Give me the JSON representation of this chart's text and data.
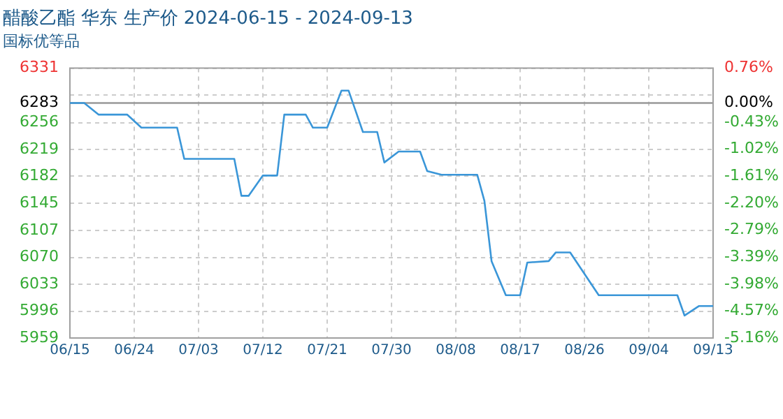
{
  "chart_data": {
    "type": "line",
    "title": "醋酸乙酯 华东 生产价 2024-06-15 - 2024-09-13",
    "subtitle": "国标优等品",
    "x": [
      "--06-15",
      "--06-17",
      "--06-19",
      "--06-23",
      "--06-25",
      "--06-30",
      "--07-01",
      "--07-08",
      "--07-09",
      "--07-10",
      "--07-12",
      "--07-14",
      "--07-15",
      "--07-18",
      "--07-19",
      "--07-21",
      "--07-23",
      "--07-24",
      "--07-26",
      "--07-28",
      "--07-29",
      "--07-31",
      "--08-03",
      "--08-04",
      "--08-06",
      "--08-11",
      "--08-12",
      "--08-13",
      "--08-15",
      "--08-17",
      "--08-18",
      "--08-21",
      "--08-22",
      "--08-24",
      "--08-28",
      "--09-08",
      "--09-09",
      "--09-11",
      "--09-13"
    ],
    "series": [
      {
        "color": "#3a96d8",
        "values": [
          6283,
          6283,
          6267,
          6267,
          6249,
          6249,
          6206,
          6206,
          6155,
          6155,
          6183,
          6183,
          6267,
          6267,
          6249,
          6249,
          6300,
          6300,
          6243,
          6243,
          6201,
          6216,
          6216,
          6189,
          6184,
          6184,
          6148,
          6065,
          6018,
          6018,
          6063,
          6065,
          6077,
          6077,
          6018,
          6018,
          5990,
          6003,
          6003
        ]
      }
    ],
    "xlim": [
      "--06-15",
      "--09-13"
    ],
    "xticks": [
      {
        "value": "--06-15",
        "label": "06/15"
      },
      {
        "value": "--06-24",
        "label": "06/24"
      },
      {
        "value": "--07-03",
        "label": "07/03"
      },
      {
        "value": "--07-12",
        "label": "07/12"
      },
      {
        "value": "--07-21",
        "label": "07/21"
      },
      {
        "value": "--07-30",
        "label": "07/30"
      },
      {
        "value": "--08-08",
        "label": "08/08"
      },
      {
        "value": "--08-17",
        "label": "08/17"
      },
      {
        "value": "--08-26",
        "label": "08/26"
      },
      {
        "value": "--09-04",
        "label": "09/04"
      },
      {
        "value": "--09-13",
        "label": "09/13"
      }
    ],
    "ylim": [
      5959,
      6331
    ],
    "yticks": [
      5959,
      5996,
      6033,
      6070,
      6107,
      6145,
      6182,
      6219,
      6256,
      {
        "value": 6294,
        "label": null
      },
      6331
    ],
    "y2lim": [
      -5.16,
      0.76
    ],
    "y2ticks": [
      {
        "value": -5.16,
        "label": "-5.16%"
      },
      {
        "value": -4.57,
        "label": "-4.57%"
      },
      {
        "value": -3.98,
        "label": "-3.98%"
      },
      {
        "value": -3.39,
        "label": "-3.39%"
      },
      {
        "value": -2.79,
        "label": "-2.79%"
      },
      {
        "value": -2.2,
        "label": "-2.20%"
      },
      {
        "value": -1.61,
        "label": "-1.61%"
      },
      {
        "value": -1.02,
        "label": "-1.02%"
      },
      {
        "value": -0.43,
        "label": "-0.43%"
      },
      {
        "value": 0,
        "label": "0.00%"
      },
      {
        "value": 0.76,
        "label": "0.76%"
      }
    ],
    "ref_lines": [
      {
        "axis": "y",
        "value": 6283,
        "label": "6283",
        "color": "#999999"
      }
    ],
    "grid": true,
    "legend": false,
    "marker": "none",
    "line_style": "solid"
  }
}
